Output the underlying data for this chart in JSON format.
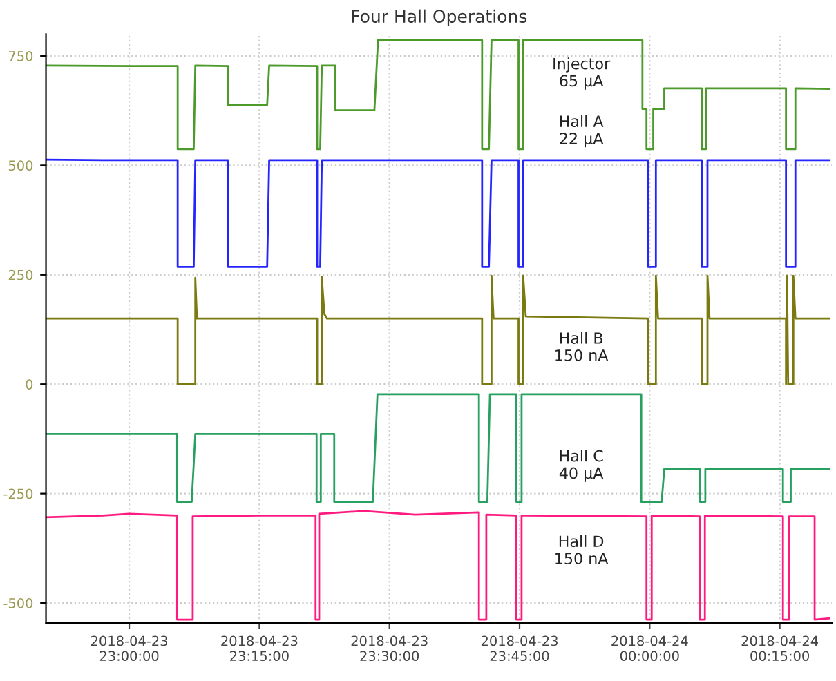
{
  "chart_data": {
    "type": "line",
    "title": "Four Hall Operations",
    "xlim": [
      "2018-04-23T22:50:24",
      "2018-04-24T00:21:00"
    ],
    "ylim": [
      -546,
      800
    ],
    "xticks": [
      {
        "value": "2018-04-23T23:00:00",
        "label": "2018-04-23\n23:00:00"
      },
      {
        "value": "2018-04-23T23:15:00",
        "label": "2018-04-23\n23:15:00"
      },
      {
        "value": "2018-04-23T23:30:00",
        "label": "2018-04-23\n23:30:00"
      },
      {
        "value": "2018-04-23T23:45:00",
        "label": "2018-04-23\n23:45:00"
      },
      {
        "value": "2018-04-24T00:00:00",
        "label": "2018-04-24\n00:00:00"
      },
      {
        "value": "2018-04-24T00:15:00",
        "label": "2018-04-24\n00:15:00"
      }
    ],
    "yticks": [
      -500,
      -250,
      0,
      250,
      500,
      750
    ],
    "grid": true,
    "line_style": "solid",
    "marker": "none",
    "annotations": [
      "Injector\n65 μA",
      "Hall A\n22 μA",
      "Hall B\n150 nA",
      "Hall C\n40 μA",
      "Hall D\n150 nA"
    ],
    "series": [
      {
        "color": "#4c9a2a",
        "x": [
          "2018-04-23T22:50:24",
          "2018-04-23T23:00:00",
          "2018-04-23T23:05:35",
          "2018-04-23T23:05:35",
          "2018-04-23T23:07:26",
          "2018-04-23T23:07:37",
          "2018-04-23T23:11:24",
          "2018-04-23T23:11:24",
          "2018-04-23T23:15:54",
          "2018-04-23T23:16:08",
          "2018-04-23T23:21:40",
          "2018-04-23T23:21:40",
          "2018-04-23T23:22:01",
          "2018-04-23T23:22:12",
          "2018-04-23T23:23:46",
          "2018-04-23T23:23:46",
          "2018-04-23T23:28:16",
          "2018-04-23T23:28:41",
          "2018-04-23T23:40:41",
          "2018-04-23T23:40:41",
          "2018-04-23T23:41:28",
          "2018-04-23T23:41:46",
          "2018-04-23T23:44:53",
          "2018-04-23T23:44:53",
          "2018-04-23T23:45:25",
          "2018-04-23T23:45:25",
          "2018-04-23T23:59:10",
          "2018-04-23T23:59:10",
          "2018-04-23T23:59:38",
          "2018-04-23T23:59:38",
          "2018-04-24T00:00:25",
          "2018-04-24T00:00:25",
          "2018-04-24T00:01:41",
          "2018-04-24T00:01:41",
          "2018-04-24T00:06:00",
          "2018-04-24T00:06:00",
          "2018-04-24T00:06:29",
          "2018-04-24T00:06:29",
          "2018-04-24T00:15:43",
          "2018-04-24T00:15:43",
          "2018-04-24T00:16:48",
          "2018-04-24T00:16:48",
          "2018-04-24T00:20:42"
        ],
        "values": [
          728,
          727,
          727,
          537,
          537,
          728,
          727,
          638,
          638,
          728,
          727,
          537,
          537,
          728,
          728,
          626,
          626,
          786,
          786,
          537,
          537,
          786,
          786,
          537,
          537,
          786,
          786,
          629,
          629,
          537,
          537,
          629,
          629,
          676,
          676,
          537,
          537,
          676,
          676,
          537,
          537,
          676,
          675
        ]
      },
      {
        "color": "#2424ff",
        "x": [
          "2018-04-23T22:50:24",
          "2018-04-23T22:57:00",
          "2018-04-23T23:05:35",
          "2018-04-23T23:05:35",
          "2018-04-23T23:07:26",
          "2018-04-23T23:07:37",
          "2018-04-23T23:11:24",
          "2018-04-23T23:11:24",
          "2018-04-23T23:15:54",
          "2018-04-23T23:16:08",
          "2018-04-23T23:21:40",
          "2018-04-23T23:21:40",
          "2018-04-23T23:22:01",
          "2018-04-23T23:22:12",
          "2018-04-23T23:40:41",
          "2018-04-23T23:40:41",
          "2018-04-23T23:41:28",
          "2018-04-23T23:41:46",
          "2018-04-23T23:44:53",
          "2018-04-23T23:44:53",
          "2018-04-23T23:45:25",
          "2018-04-23T23:45:25",
          "2018-04-23T23:59:49",
          "2018-04-23T23:59:49",
          "2018-04-24T00:00:43",
          "2018-04-24T00:00:43",
          "2018-04-24T00:06:00",
          "2018-04-24T00:06:00",
          "2018-04-24T00:06:40",
          "2018-04-24T00:06:40",
          "2018-04-24T00:15:43",
          "2018-04-24T00:15:43",
          "2018-04-24T00:16:48",
          "2018-04-24T00:16:48",
          "2018-04-24T00:20:42"
        ],
        "values": [
          513,
          512,
          512,
          268,
          268,
          512,
          512,
          268,
          268,
          512,
          512,
          268,
          268,
          512,
          512,
          268,
          268,
          512,
          512,
          268,
          268,
          512,
          512,
          268,
          268,
          512,
          512,
          268,
          268,
          512,
          512,
          268,
          268,
          512,
          512
        ]
      },
      {
        "color": "#7a7a10",
        "x": [
          "2018-04-23T22:50:24",
          "2018-04-23T23:05:35",
          "2018-04-23T23:05:35",
          "2018-04-23T23:07:37",
          "2018-04-23T23:07:37",
          "2018-04-23T23:07:48",
          "2018-04-23T23:21:40",
          "2018-04-23T23:21:40",
          "2018-04-23T23:22:12",
          "2018-04-23T23:22:12",
          "2018-04-23T23:22:30",
          "2018-04-23T23:22:48",
          "2018-04-23T23:40:41",
          "2018-04-23T23:40:41",
          "2018-04-23T23:41:46",
          "2018-04-23T23:41:46",
          "2018-04-23T23:42:00",
          "2018-04-23T23:44:53",
          "2018-04-23T23:44:53",
          "2018-04-23T23:45:25",
          "2018-04-23T23:45:25",
          "2018-04-23T23:45:43",
          "2018-04-23T23:59:49",
          "2018-04-23T23:59:49",
          "2018-04-24T00:00:43",
          "2018-04-24T00:00:43",
          "2018-04-24T00:00:58",
          "2018-04-24T00:06:00",
          "2018-04-24T00:06:00",
          "2018-04-24T00:06:40",
          "2018-04-24T00:06:40",
          "2018-04-24T00:06:54",
          "2018-04-24T00:15:43",
          "2018-04-24T00:15:43",
          "2018-04-24T00:15:50",
          "2018-04-24T00:15:58",
          "2018-04-24T00:16:34",
          "2018-04-24T00:16:34",
          "2018-04-24T00:16:48",
          "2018-04-24T00:20:42"
        ],
        "values": [
          150,
          150,
          0,
          0,
          243,
          150,
          150,
          0,
          0,
          245,
          160,
          150,
          150,
          0,
          0,
          248,
          150,
          150,
          0,
          0,
          248,
          155,
          150,
          0,
          0,
          248,
          150,
          150,
          0,
          0,
          248,
          150,
          150,
          0,
          248,
          0,
          0,
          248,
          150,
          150
        ]
      },
      {
        "color": "#27a060",
        "x": [
          "2018-04-23T22:50:24",
          "2018-04-23T23:05:31",
          "2018-04-23T23:05:31",
          "2018-04-23T23:07:12",
          "2018-04-23T23:07:37",
          "2018-04-23T23:21:36",
          "2018-04-23T23:21:36",
          "2018-04-23T23:22:05",
          "2018-04-23T23:22:05",
          "2018-04-23T23:23:38",
          "2018-04-23T23:23:38",
          "2018-04-23T23:28:05",
          "2018-04-23T23:28:37",
          "2018-04-23T23:40:19",
          "2018-04-23T23:40:19",
          "2018-04-23T23:41:17",
          "2018-04-23T23:41:35",
          "2018-04-23T23:44:38",
          "2018-04-23T23:44:38",
          "2018-04-23T23:45:14",
          "2018-04-23T23:45:14",
          "2018-04-23T23:59:02",
          "2018-04-23T23:59:02",
          "2018-04-24T00:01:23",
          "2018-04-24T00:01:41",
          "2018-04-24T00:05:49",
          "2018-04-24T00:05:49",
          "2018-04-24T00:06:25",
          "2018-04-24T00:06:25",
          "2018-04-24T00:15:22",
          "2018-04-24T00:15:22",
          "2018-04-24T00:16:16",
          "2018-04-24T00:16:16",
          "2018-04-24T00:20:42"
        ],
        "values": [
          -114,
          -114,
          -269,
          -269,
          -114,
          -114,
          -269,
          -269,
          -114,
          -114,
          -269,
          -269,
          -23,
          -23,
          -269,
          -269,
          -23,
          -23,
          -269,
          -269,
          -23,
          -23,
          -269,
          -269,
          -194,
          -194,
          -269,
          -269,
          -194,
          -194,
          -269,
          -269,
          -194,
          -194
        ]
      },
      {
        "color": "#ff1a80",
        "x": [
          "2018-04-23T22:50:24",
          "2018-04-23T22:57:00",
          "2018-04-23T23:00:00",
          "2018-04-23T23:05:31",
          "2018-04-23T23:05:31",
          "2018-04-23T23:07:19",
          "2018-04-23T23:07:19",
          "2018-04-23T23:15:00",
          "2018-04-23T23:21:29",
          "2018-04-23T23:21:29",
          "2018-04-23T23:21:54",
          "2018-04-23T23:21:54",
          "2018-04-23T23:27:00",
          "2018-04-23T23:33:00",
          "2018-04-23T23:40:19",
          "2018-04-23T23:40:19",
          "2018-04-23T23:41:10",
          "2018-04-23T23:41:10",
          "2018-04-23T23:44:38",
          "2018-04-23T23:44:38",
          "2018-04-23T23:45:14",
          "2018-04-23T23:45:14",
          "2018-04-23T23:59:38",
          "2018-04-23T23:59:38",
          "2018-04-24T00:00:14",
          "2018-04-24T00:00:14",
          "2018-04-24T00:05:46",
          "2018-04-24T00:05:46",
          "2018-04-24T00:06:22",
          "2018-04-24T00:06:22",
          "2018-04-24T00:15:22",
          "2018-04-24T00:15:22",
          "2018-04-24T00:16:05",
          "2018-04-24T00:16:05",
          "2018-04-24T00:19:01",
          "2018-04-24T00:19:01",
          "2018-04-24T00:20:42"
        ],
        "values": [
          -304,
          -300,
          -296,
          -300,
          -538,
          -538,
          -302,
          -300,
          -300,
          -538,
          -538,
          -296,
          -290,
          -298,
          -293,
          -538,
          -538,
          -298,
          -300,
          -538,
          -538,
          -300,
          -302,
          -538,
          -538,
          -300,
          -302,
          -538,
          -538,
          -300,
          -302,
          -538,
          -538,
          -302,
          -302,
          -538,
          -535
        ]
      }
    ]
  }
}
